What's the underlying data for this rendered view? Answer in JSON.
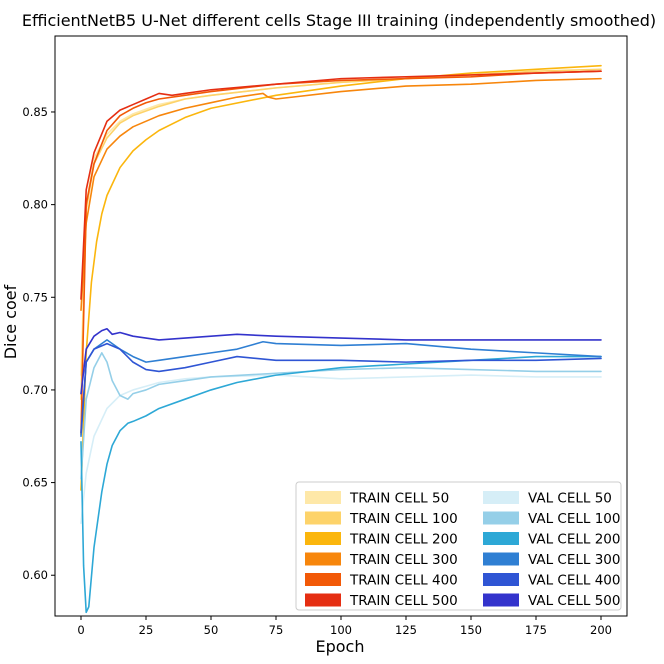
{
  "chart_data": {
    "type": "line",
    "title": "EfficientNetB5 U-Net different cells Stage III training (independently smoothed)",
    "xlabel": "Epoch",
    "ylabel": "Dice coef",
    "xlim": [
      -10,
      210
    ],
    "ylim": [
      0.578,
      0.891
    ],
    "xticks": [
      0,
      25,
      50,
      75,
      100,
      125,
      150,
      175,
      200
    ],
    "yticks": [
      0.6,
      0.65,
      0.7,
      0.75,
      0.8,
      0.85
    ],
    "ytick_labels": [
      "0.60",
      "0.65",
      "0.70",
      "0.75",
      "0.80",
      "0.85"
    ],
    "legend_position": "bottom-right",
    "series": [
      {
        "name": "TRAIN CELL 50",
        "color": "#fee8a8",
        "x": [
          0,
          2,
          5,
          10,
          15,
          20,
          30,
          40,
          50,
          75,
          100,
          125,
          150,
          175,
          200
        ],
        "y": [
          0.708,
          0.8,
          0.825,
          0.838,
          0.845,
          0.849,
          0.854,
          0.857,
          0.859,
          0.863,
          0.866,
          0.868,
          0.87,
          0.871,
          0.872
        ]
      },
      {
        "name": "TRAIN CELL 100",
        "color": "#fdd36a",
        "x": [
          0,
          2,
          5,
          10,
          15,
          20,
          30,
          40,
          50,
          75,
          100,
          125,
          150,
          175,
          200
        ],
        "y": [
          0.695,
          0.797,
          0.822,
          0.836,
          0.844,
          0.848,
          0.853,
          0.857,
          0.859,
          0.863,
          0.866,
          0.868,
          0.87,
          0.872,
          0.873
        ]
      },
      {
        "name": "TRAIN CELL 200",
        "color": "#fbb60d",
        "x": [
          0,
          2,
          4,
          6,
          8,
          10,
          15,
          20,
          25,
          30,
          40,
          50,
          75,
          100,
          125,
          150,
          175,
          200
        ],
        "y": [
          0.646,
          0.72,
          0.758,
          0.78,
          0.795,
          0.805,
          0.82,
          0.829,
          0.835,
          0.84,
          0.847,
          0.852,
          0.859,
          0.864,
          0.868,
          0.871,
          0.873,
          0.875
        ]
      },
      {
        "name": "TRAIN CELL 300",
        "color": "#f7860c",
        "x": [
          0,
          2,
          5,
          10,
          15,
          20,
          30,
          40,
          50,
          60,
          70,
          72,
          75,
          100,
          125,
          150,
          175,
          200
        ],
        "y": [
          0.743,
          0.79,
          0.815,
          0.83,
          0.837,
          0.842,
          0.848,
          0.852,
          0.855,
          0.858,
          0.86,
          0.858,
          0.857,
          0.861,
          0.864,
          0.865,
          0.867,
          0.868
        ]
      },
      {
        "name": "TRAIN CELL 400",
        "color": "#f25907",
        "x": [
          0,
          2,
          5,
          10,
          15,
          20,
          25,
          30,
          40,
          50,
          75,
          100,
          125,
          150,
          175,
          200
        ],
        "y": [
          0.676,
          0.8,
          0.822,
          0.84,
          0.848,
          0.852,
          0.855,
          0.857,
          0.859,
          0.861,
          0.865,
          0.867,
          0.868,
          0.869,
          0.871,
          0.872
        ]
      },
      {
        "name": "TRAIN CELL 500",
        "color": "#e52e12",
        "x": [
          0,
          2,
          5,
          10,
          15,
          20,
          25,
          30,
          35,
          40,
          50,
          75,
          100,
          125,
          150,
          175,
          200
        ],
        "y": [
          0.749,
          0.808,
          0.828,
          0.845,
          0.851,
          0.854,
          0.857,
          0.86,
          0.859,
          0.86,
          0.862,
          0.865,
          0.868,
          0.869,
          0.87,
          0.871,
          0.872
        ]
      },
      {
        "name": "VAL CELL 50",
        "color": "#d6eef7",
        "x": [
          0,
          2,
          5,
          10,
          15,
          20,
          25,
          30,
          40,
          50,
          75,
          100,
          125,
          150,
          175,
          200
        ],
        "y": [
          0.628,
          0.655,
          0.675,
          0.69,
          0.697,
          0.7,
          0.702,
          0.704,
          0.706,
          0.707,
          0.708,
          0.706,
          0.707,
          0.708,
          0.707,
          0.707
        ]
      },
      {
        "name": "VAL CELL 100",
        "color": "#95cfe8",
        "x": [
          0,
          2,
          5,
          8,
          10,
          12,
          15,
          18,
          20,
          25,
          30,
          40,
          50,
          75,
          100,
          125,
          150,
          175,
          200
        ],
        "y": [
          0.652,
          0.695,
          0.712,
          0.72,
          0.715,
          0.705,
          0.697,
          0.695,
          0.698,
          0.7,
          0.703,
          0.705,
          0.707,
          0.709,
          0.711,
          0.712,
          0.711,
          0.71,
          0.71
        ]
      },
      {
        "name": "VAL CELL 200",
        "color": "#2da8d6",
        "x": [
          0,
          1,
          2,
          3,
          5,
          8,
          10,
          12,
          15,
          18,
          20,
          25,
          30,
          40,
          50,
          60,
          75,
          100,
          125,
          150,
          175,
          200
        ],
        "y": [
          0.672,
          0.605,
          0.58,
          0.583,
          0.615,
          0.645,
          0.66,
          0.67,
          0.678,
          0.682,
          0.683,
          0.686,
          0.69,
          0.695,
          0.7,
          0.704,
          0.708,
          0.712,
          0.714,
          0.716,
          0.718,
          0.718
        ]
      },
      {
        "name": "VAL CELL 300",
        "color": "#2f7fd3",
        "x": [
          0,
          2,
          5,
          10,
          15,
          20,
          25,
          30,
          40,
          50,
          60,
          70,
          75,
          100,
          125,
          150,
          175,
          200
        ],
        "y": [
          0.675,
          0.715,
          0.722,
          0.727,
          0.722,
          0.718,
          0.715,
          0.716,
          0.718,
          0.72,
          0.722,
          0.726,
          0.725,
          0.724,
          0.725,
          0.722,
          0.72,
          0.718
        ]
      },
      {
        "name": "VAL CELL 400",
        "color": "#2f55d4",
        "x": [
          0,
          2,
          5,
          10,
          15,
          20,
          25,
          30,
          40,
          50,
          60,
          75,
          100,
          125,
          150,
          175,
          200
        ],
        "y": [
          0.677,
          0.715,
          0.722,
          0.725,
          0.722,
          0.715,
          0.711,
          0.71,
          0.712,
          0.715,
          0.718,
          0.716,
          0.716,
          0.715,
          0.716,
          0.716,
          0.717
        ]
      },
      {
        "name": "VAL CELL 500",
        "color": "#3333cc",
        "x": [
          0,
          2,
          5,
          8,
          10,
          12,
          15,
          20,
          25,
          30,
          40,
          50,
          60,
          75,
          100,
          125,
          150,
          175,
          200
        ],
        "y": [
          0.698,
          0.722,
          0.729,
          0.732,
          0.733,
          0.73,
          0.731,
          0.729,
          0.728,
          0.727,
          0.728,
          0.729,
          0.73,
          0.729,
          0.728,
          0.727,
          0.727,
          0.727,
          0.727
        ]
      }
    ]
  }
}
